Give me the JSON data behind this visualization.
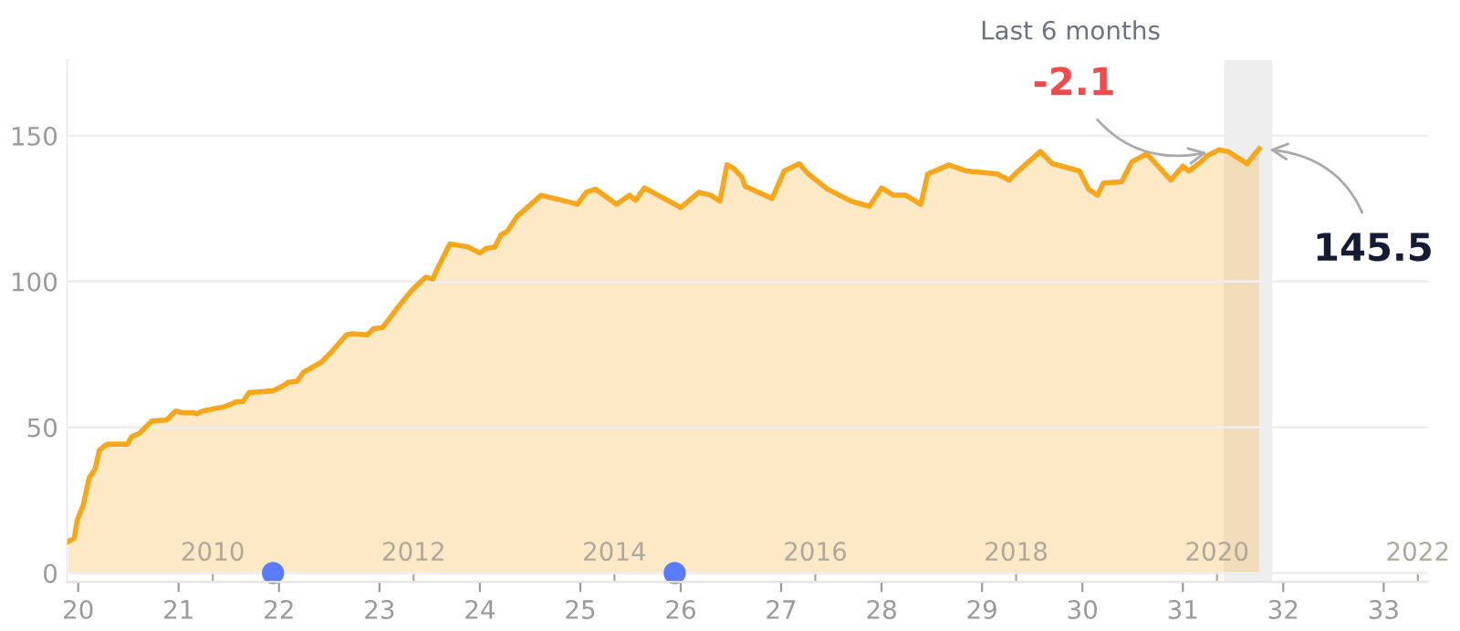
{
  "chart_data": {
    "type": "area",
    "x2label": null,
    "series": [
      {
        "color": "#f8a61c",
        "x": [
          2008.56,
          2008.62,
          2008.65,
          2008.71,
          2008.77,
          2008.83,
          2008.87,
          2008.93,
          2008.96,
          2009.15,
          2009.19,
          2009.27,
          2009.39,
          2009.54,
          2009.63,
          2009.69,
          2009.81,
          2009.84,
          2009.9,
          2010.12,
          2010.24,
          2010.3,
          2010.36,
          2010.6,
          2010.69,
          2010.75,
          2010.84,
          2010.9,
          2011.08,
          2011.18,
          2011.33,
          2011.39,
          2011.54,
          2011.6,
          2011.69,
          2011.75,
          2011.84,
          2011.99,
          2012.12,
          2012.19,
          2012.24,
          2012.36,
          2012.54,
          2012.66,
          2012.72,
          2012.81,
          2012.87,
          2012.93,
          2013.03,
          2013.27,
          2013.57,
          2013.63,
          2013.72,
          2013.81,
          2014.02,
          2014.15,
          2014.21,
          2014.3,
          2014.66,
          2014.84,
          2014.96,
          2015.05,
          2015.12,
          2015.18,
          2015.27,
          2015.3,
          2015.57,
          2015.69,
          2015.84,
          2015.93,
          2016.12,
          2016.36,
          2016.54,
          2016.66,
          2016.78,
          2016.9,
          2017.05,
          2017.12,
          2017.33,
          2017.51,
          2017.81,
          2017.93,
          2018.02,
          2018.24,
          2018.36,
          2018.63,
          2018.72,
          2018.81,
          2018.87,
          2019.05,
          2019.15,
          2019.21,
          2019.3,
          2019.54,
          2019.66,
          2019.72,
          2019.84,
          2019.9,
          2020.02,
          2020.11,
          2020.3,
          2020.36,
          2020.42
        ],
        "values": [
          10.8,
          11.9,
          18.1,
          23.3,
          32.7,
          35.8,
          42.1,
          43.8,
          44.2,
          44.2,
          46.7,
          47.9,
          52.1,
          52.5,
          55.6,
          55.0,
          55.0,
          54.6,
          55.6,
          57.1,
          58.8,
          58.8,
          61.9,
          62.5,
          64.0,
          65.4,
          65.8,
          68.8,
          72.3,
          75.8,
          81.7,
          82.1,
          81.7,
          83.8,
          84.2,
          86.9,
          91.0,
          97.3,
          101.5,
          100.8,
          104.6,
          112.9,
          111.9,
          109.8,
          111.3,
          111.9,
          116.0,
          117.1,
          122.3,
          129.6,
          127.1,
          126.5,
          130.6,
          131.7,
          126.5,
          129.6,
          127.9,
          132.1,
          125.4,
          130.6,
          129.6,
          127.5,
          140.0,
          139.0,
          135.8,
          132.7,
          128.5,
          137.9,
          140.4,
          136.9,
          131.7,
          127.5,
          125.8,
          132.1,
          129.6,
          129.6,
          126.5,
          136.9,
          140.0,
          137.9,
          136.9,
          134.8,
          137.9,
          144.6,
          140.4,
          137.9,
          131.7,
          129.6,
          133.8,
          134.2,
          141.0,
          142.1,
          143.8,
          134.8,
          139.6,
          137.9,
          141.0,
          143.1,
          145.2,
          144.6,
          140.4,
          143.1,
          145.5
        ]
      },
      {
        "type": "scatter",
        "marker": "circle",
        "color": "#5b7cfa",
        "x": [
          2010.6,
          2014.6
        ],
        "values": [
          0,
          0
        ]
      }
    ],
    "xlim": [
      2008.55,
      2022.1
    ],
    "xticks": [
      2010,
      2012,
      2014,
      2016,
      2018,
      2020,
      2022
    ],
    "x2lim": [
      19.89,
      33.44
    ],
    "x2ticks": [
      20,
      21,
      22,
      23,
      24,
      25,
      26,
      27,
      28,
      29,
      30,
      31,
      32,
      33
    ],
    "ylim": [
      -3,
      176
    ],
    "yticks": [
      0,
      50,
      100,
      150
    ],
    "grid": "y",
    "bands": [
      {
        "axis": "x",
        "from": 2020.07,
        "to": 2020.55,
        "label": "Last 6 months",
        "color": "#eeeeee"
      }
    ],
    "annotations": [
      {
        "text": "-2.1",
        "x": 2020.0,
        "y": 145.0
      },
      {
        "text": "145.5",
        "x": 2020.42,
        "y": 145.5
      }
    ]
  }
}
